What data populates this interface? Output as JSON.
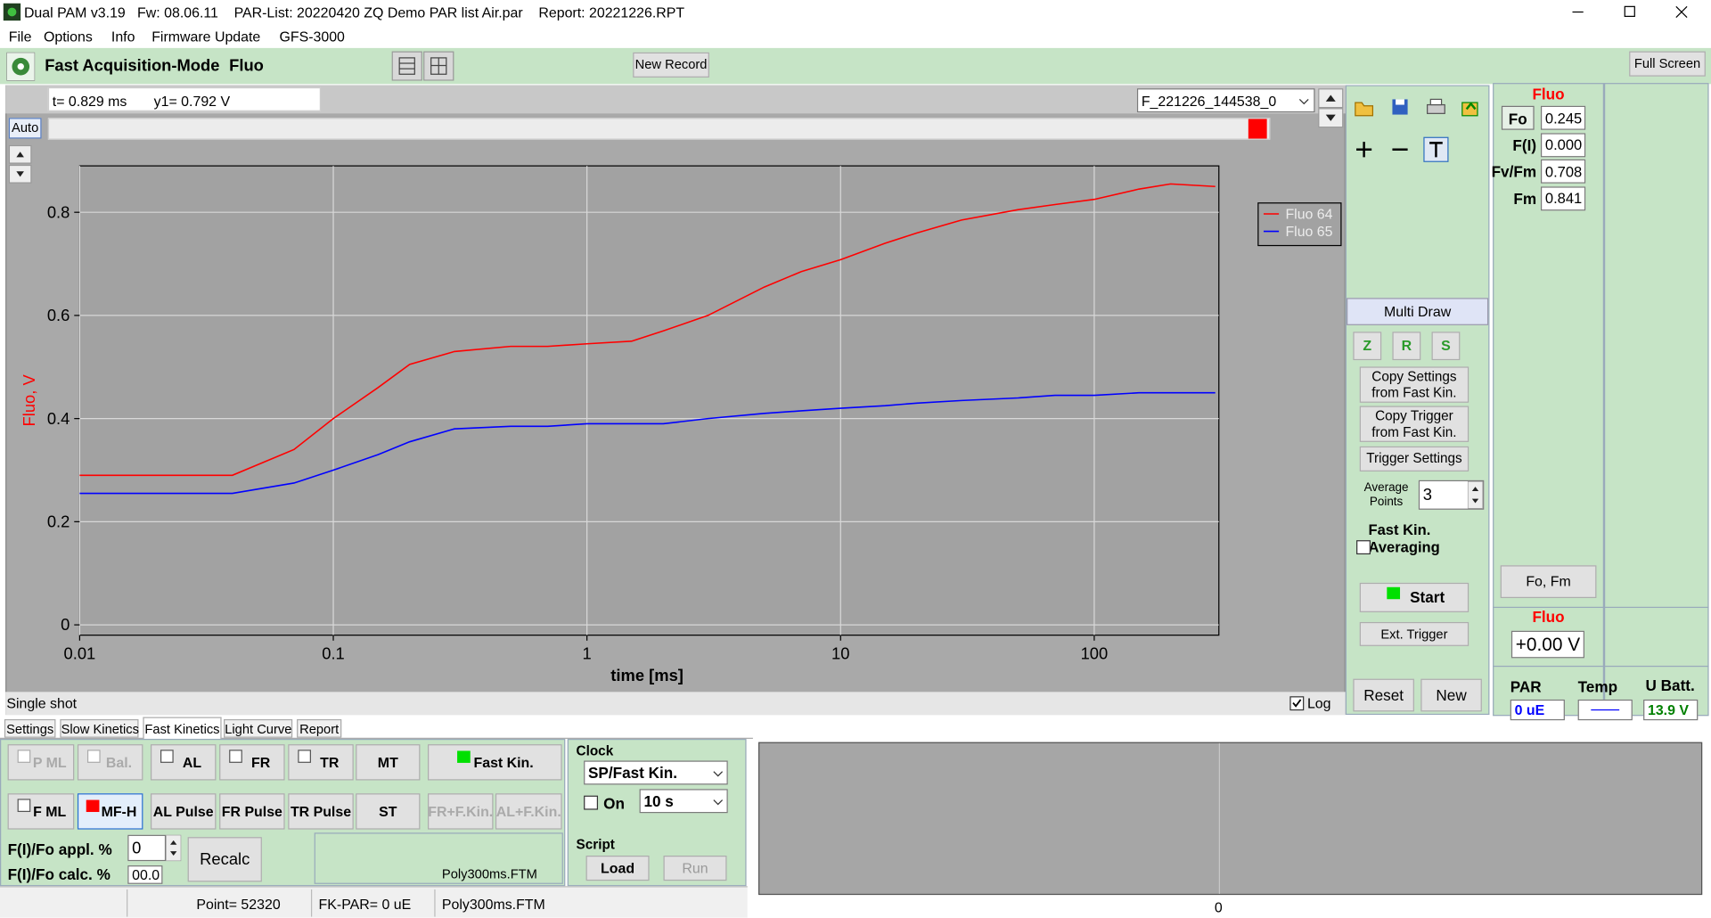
{
  "window": {
    "title": "Dual PAM v3.19   Fw: 08.06.11    PAR-List: 20220420 ZQ Demo PAR list Air.par    Report: 20221226.RPT"
  },
  "menu": [
    "File",
    "Options",
    "Info",
    "Firmware Update",
    "GFS-3000"
  ],
  "toolbar": {
    "mode": "Fast Acquisition-Mode",
    "signal": "Fluo",
    "new_record": "New Record",
    "full_screen": "Full Screen"
  },
  "plot_header": {
    "cursor_t": "t= 0.829 ms",
    "cursor_y1": "y1= 0.792 V",
    "record": "F_221226_144538_0",
    "auto": "Auto"
  },
  "chart": {
    "type": "line",
    "x_label": "time [ms]",
    "y_label": "Fluo, V",
    "x_log": true,
    "grid": true,
    "legend": "upper right",
    "xlim": [
      0.01,
      310
    ],
    "ylim": [
      -0.02,
      0.89
    ],
    "xticks": [
      0.01,
      0.1,
      1,
      10,
      100
    ],
    "yticks": [
      0,
      0.2,
      0.4,
      0.6,
      0.8
    ],
    "x": [
      0.01,
      0.02,
      0.04,
      0.07,
      0.1,
      0.15,
      0.2,
      0.3,
      0.5,
      0.7,
      1,
      1.5,
      2,
      3,
      5,
      7,
      10,
      15,
      20,
      30,
      50,
      70,
      100,
      150,
      200,
      300
    ],
    "series": [
      {
        "name": "Fluo 64",
        "color": "#ff0000",
        "values": [
          0.29,
          0.29,
          0.29,
          0.34,
          0.4,
          0.46,
          0.505,
          0.53,
          0.54,
          0.54,
          0.545,
          0.55,
          0.57,
          0.6,
          0.655,
          0.685,
          0.708,
          0.74,
          0.76,
          0.785,
          0.805,
          0.815,
          0.825,
          0.845,
          0.855,
          0.85
        ]
      },
      {
        "name": "Fluo 65",
        "color": "#0000ff",
        "values": [
          0.255,
          0.255,
          0.255,
          0.275,
          0.3,
          0.33,
          0.355,
          0.38,
          0.385,
          0.385,
          0.39,
          0.39,
          0.39,
          0.4,
          0.41,
          0.415,
          0.42,
          0.425,
          0.43,
          0.435,
          0.44,
          0.445,
          0.445,
          0.45,
          0.45,
          0.45
        ]
      }
    ]
  },
  "plot_footer": {
    "status": "Single shot",
    "log": "Log"
  },
  "control_panel": {
    "multi_draw": "Multi Draw",
    "zrs": [
      "Z",
      "R",
      "S"
    ],
    "copy_settings": "Copy Settings\nfrom Fast Kin.",
    "copy_trigger": "Copy Trigger\nfrom Fast Kin.",
    "trigger_settings": "Trigger Settings",
    "average_label": "Average\nPoints",
    "average_value": "3",
    "averaging": "Fast Kin.\nAveraging",
    "start": "Start",
    "ext_trigger": "Ext. Trigger",
    "reset": "Reset",
    "new": "New"
  },
  "fluo_panel": {
    "title": "Fluo",
    "params": [
      {
        "label": "Fo",
        "value": "0.245"
      },
      {
        "label": "F(I)",
        "value": "0.000"
      },
      {
        "label": "Fv/Fm",
        "value": "0.708"
      },
      {
        "label": "Fm",
        "value": "0.841"
      }
    ],
    "fo_fm": "Fo, Fm",
    "signal_title": "Fluo",
    "signal_value": "+0.00 V"
  },
  "readings": {
    "par_label": "PAR",
    "par_value": "0 uE",
    "temp_label": "Temp",
    "batt_label": "U Batt.",
    "batt_value": "13.9 V"
  },
  "tabs": {
    "items": [
      "Settings",
      "Slow Kinetics",
      "Fast Kinetics",
      "Light Curve",
      "Report"
    ],
    "active": 2
  },
  "light_controls": {
    "row1": [
      {
        "label": "P ML",
        "checkbox": true,
        "enabled": false
      },
      {
        "label": "Bal.",
        "checkbox": true,
        "enabled": false
      },
      {
        "label": "AL",
        "checkbox": true
      },
      {
        "label": "FR",
        "checkbox": true
      },
      {
        "label": "TR",
        "checkbox": true
      },
      {
        "label": "MT"
      },
      {
        "label": "Fast Kin.",
        "indicator": "#00e000"
      }
    ],
    "row2": [
      {
        "label": "F ML",
        "checkbox": true
      },
      {
        "label": "MF-H",
        "indicator": "#ff0000",
        "active": true
      },
      {
        "label": "AL Pulse"
      },
      {
        "label": "FR Pulse"
      },
      {
        "label": "TR Pulse"
      },
      {
        "label": "ST"
      },
      {
        "label": "FR+F.Kin.",
        "enabled": false
      },
      {
        "label": "AL+F.Kin.",
        "enabled": false
      }
    ]
  },
  "fi_fo": {
    "appl_label": "F(I)/Fo appl. %",
    "appl_value": "0",
    "calc_label": "F(I)/Fo calc. %",
    "calc_value": "00.0",
    "recalc": "Recalc",
    "file": "Poly300ms.FTM"
  },
  "clock": {
    "title": "Clock",
    "mode": "SP/Fast Kin.",
    "on": "On",
    "interval": "10 s",
    "script_title": "Script",
    "load": "Load",
    "run": "Run"
  },
  "status_bar": {
    "point": "Point= 52320",
    "fk_par": "FK-PAR= 0 uE",
    "file": "Poly300ms.FTM"
  },
  "lower_plot": {
    "x_tick": "0"
  }
}
